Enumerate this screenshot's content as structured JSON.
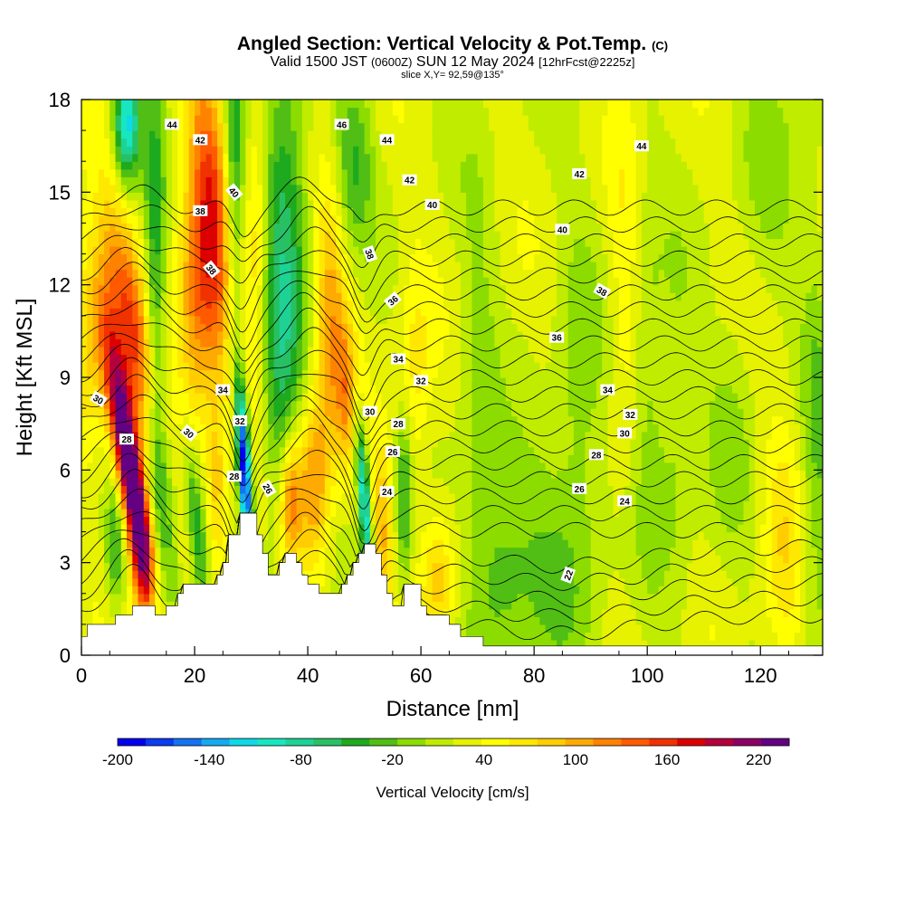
{
  "title": {
    "main": "Angled Section: Vertical Velocity & Pot.Temp.",
    "mark": "(C)",
    "valid_prefix": "Valid 1500 JST",
    "valid_z": "(0600Z)",
    "valid_date": "SUN 12 May 2024",
    "forecast": "[12hrFcst@2225z]",
    "slice": "slice X,Y= 92,59@135°"
  },
  "chart_data": {
    "type": "heatmap",
    "xlabel": "Distance [nm]",
    "ylabel": "Height [Kft MSL]",
    "xlim": [
      0,
      131
    ],
    "ylim": [
      0,
      18
    ],
    "x_ticks": [
      "0",
      "20",
      "40",
      "60",
      "80",
      "100",
      "120"
    ],
    "y_ticks": [
      "0",
      "3",
      "6",
      "9",
      "12",
      "15",
      "18"
    ],
    "colorbar": {
      "label": "Vertical Velocity [cm/s]",
      "tick_labels": [
        "-200",
        "-140",
        "-80",
        "-20",
        "40",
        "100",
        "160",
        "220"
      ],
      "tick_values": [
        -200,
        -140,
        -80,
        -20,
        40,
        100,
        160,
        220
      ],
      "range": [
        -200,
        240
      ],
      "colors": [
        "#0000ee",
        "#0a3cf0",
        "#1473f0",
        "#14aaf0",
        "#10d8e8",
        "#18e6c0",
        "#1ed296",
        "#28c064",
        "#1eaa1e",
        "#50be14",
        "#8cdc00",
        "#c0ec00",
        "#e6f200",
        "#ffff00",
        "#ffe800",
        "#ffcd00",
        "#ffaa00",
        "#ff8200",
        "#ff5a00",
        "#f03200",
        "#dc0000",
        "#b4003c",
        "#8c0064",
        "#640082"
      ]
    },
    "terrain": [
      [
        0,
        0.6
      ],
      [
        1,
        0.6
      ],
      [
        1,
        1
      ],
      [
        6,
        1
      ],
      [
        6,
        1.3
      ],
      [
        9,
        1.3
      ],
      [
        9,
        1.6
      ],
      [
        13,
        1.6
      ],
      [
        13,
        1.3
      ],
      [
        15,
        1.3
      ],
      [
        15,
        1.6
      ],
      [
        17,
        1.6
      ],
      [
        17,
        2
      ],
      [
        18,
        2
      ],
      [
        18,
        2.3
      ],
      [
        24,
        2.3
      ],
      [
        24,
        2.6
      ],
      [
        25,
        2.6
      ],
      [
        25,
        3
      ],
      [
        26,
        3
      ],
      [
        26,
        3.9
      ],
      [
        28,
        3.9
      ],
      [
        28,
        4.6
      ],
      [
        31,
        4.6
      ],
      [
        31,
        3.9
      ],
      [
        32,
        3.9
      ],
      [
        32,
        3.3
      ],
      [
        33,
        3.3
      ],
      [
        33,
        2.6
      ],
      [
        35,
        2.6
      ],
      [
        35,
        3
      ],
      [
        36,
        3
      ],
      [
        36,
        3.3
      ],
      [
        38,
        3.3
      ],
      [
        38,
        3
      ],
      [
        39,
        3
      ],
      [
        39,
        2.6
      ],
      [
        40,
        2.6
      ],
      [
        40,
        2.3
      ],
      [
        42,
        2.3
      ],
      [
        42,
        2
      ],
      [
        46,
        2
      ],
      [
        46,
        2.3
      ],
      [
        47,
        2.3
      ],
      [
        47,
        2.6
      ],
      [
        48,
        2.6
      ],
      [
        48,
        3
      ],
      [
        49,
        3
      ],
      [
        49,
        3.3
      ],
      [
        50,
        3.3
      ],
      [
        50,
        3.6
      ],
      [
        52,
        3.6
      ],
      [
        52,
        3.3
      ],
      [
        53,
        3.3
      ],
      [
        53,
        2.6
      ],
      [
        54,
        2.6
      ],
      [
        54,
        2
      ],
      [
        55,
        2
      ],
      [
        55,
        1.6
      ],
      [
        57,
        1.6
      ],
      [
        57,
        2.3
      ],
      [
        60,
        2.3
      ],
      [
        60,
        1.6
      ],
      [
        61,
        1.6
      ],
      [
        61,
        1.3
      ],
      [
        65,
        1.3
      ],
      [
        65,
        1
      ],
      [
        67,
        1
      ],
      [
        67,
        0.6
      ],
      [
        71,
        0.6
      ],
      [
        71,
        0.3
      ],
      [
        131,
        0.3
      ],
      [
        131,
        0
      ]
    ],
    "w_features": [
      {
        "x": 8.5,
        "y": 6,
        "sx": 1.6,
        "sy": 2.8,
        "amp": 260,
        "tilt": -0.8
      },
      {
        "x": 9,
        "y": 10.5,
        "sx": 2.5,
        "sy": 3.0,
        "amp": 110,
        "tilt": -0.8
      },
      {
        "x": 2,
        "y": 10.5,
        "sx": 3,
        "sy": 2.5,
        "amp": 60,
        "tilt": 0
      },
      {
        "x": 11,
        "y": 3,
        "sx": 1.5,
        "sy": 1.5,
        "amp": 80,
        "tilt": 0
      },
      {
        "x": 6,
        "y": 3.5,
        "sx": 1.2,
        "sy": 1.5,
        "amp": -60,
        "tilt": 0
      },
      {
        "x": 15,
        "y": 4.5,
        "sx": 1.5,
        "sy": 2.5,
        "amp": -60,
        "tilt": -0.4
      },
      {
        "x": 13,
        "y": 11,
        "sx": 1.3,
        "sy": 7,
        "amp": -70,
        "tilt": 0
      },
      {
        "x": 8,
        "y": 17.2,
        "sx": 1.6,
        "sy": 1.3,
        "amp": -140,
        "tilt": 0
      },
      {
        "x": 23,
        "y": 14.5,
        "sx": 2.5,
        "sy": 4,
        "amp": 120,
        "tilt": -0.3
      },
      {
        "x": 20,
        "y": 11,
        "sx": 2.5,
        "sy": 3,
        "amp": 80,
        "tilt": 0
      },
      {
        "x": 20.5,
        "y": 4,
        "sx": 1.2,
        "sy": 2,
        "amp": -90,
        "tilt": -0.5
      },
      {
        "x": 24,
        "y": 5.5,
        "sx": 1.3,
        "sy": 2,
        "amp": 50,
        "tilt": 0
      },
      {
        "x": 27,
        "y": 15.5,
        "sx": 1.3,
        "sy": 4,
        "amp": -80,
        "tilt": 0
      },
      {
        "x": 28.8,
        "y": 6,
        "sx": 0.8,
        "sy": 2.0,
        "amp": -230,
        "tilt": -0.3
      },
      {
        "x": 31,
        "y": 13.5,
        "sx": 1.5,
        "sy": 4.5,
        "amp": 50,
        "tilt": 0
      },
      {
        "x": 36,
        "y": 14,
        "sx": 3,
        "sy": 4,
        "amp": -80,
        "tilt": 0
      },
      {
        "x": 35,
        "y": 8,
        "sx": 2.5,
        "sy": 3,
        "amp": -50,
        "tilt": 0
      },
      {
        "x": 37,
        "y": 5,
        "sx": 1.3,
        "sy": 1.5,
        "amp": 100,
        "tilt": 0
      },
      {
        "x": 41,
        "y": 5.5,
        "sx": 2,
        "sy": 2,
        "amp": 90,
        "tilt": 0
      },
      {
        "x": 44,
        "y": 11,
        "sx": 2,
        "sy": 3,
        "amp": 80,
        "tilt": 0
      },
      {
        "x": 47,
        "y": 8.5,
        "sx": 1.5,
        "sy": 1.8,
        "amp": 70,
        "tilt": 0
      },
      {
        "x": 50,
        "y": 5,
        "sx": 0.8,
        "sy": 2.2,
        "amp": -140,
        "tilt": -0.4
      },
      {
        "x": 48,
        "y": 16,
        "sx": 2.5,
        "sy": 2,
        "amp": -60,
        "tilt": 0
      },
      {
        "x": 53,
        "y": 4,
        "sx": 1.3,
        "sy": 2,
        "amp": 70,
        "tilt": 0
      },
      {
        "x": 57,
        "y": 5,
        "sx": 1,
        "sy": 2,
        "amp": -70,
        "tilt": 0
      },
      {
        "x": 59,
        "y": 9,
        "sx": 2,
        "sy": 2.5,
        "amp": 40,
        "tilt": 0
      },
      {
        "x": 63,
        "y": 2.5,
        "sx": 2,
        "sy": 1.5,
        "amp": 60,
        "tilt": 0
      },
      {
        "x": 70,
        "y": 8,
        "sx": 2.5,
        "sy": 6,
        "amp": -30,
        "tilt": 0
      },
      {
        "x": 74,
        "y": 2.5,
        "sx": 3,
        "sy": 2,
        "amp": -40,
        "tilt": 0
      },
      {
        "x": 82,
        "y": 3,
        "sx": 6,
        "sy": 3,
        "amp": -35,
        "tilt": 0
      },
      {
        "x": 88,
        "y": 8,
        "sx": 3,
        "sy": 5,
        "amp": -30,
        "tilt": 0
      },
      {
        "x": 96,
        "y": 12,
        "sx": 2,
        "sy": 5,
        "amp": 25,
        "tilt": 0
      },
      {
        "x": 100,
        "y": 9,
        "sx": 2,
        "sy": 4,
        "amp": -30,
        "tilt": 0
      },
      {
        "x": 105,
        "y": 7,
        "sx": 3,
        "sy": 4,
        "amp": -30,
        "tilt": 0
      },
      {
        "x": 115,
        "y": 7,
        "sx": 3,
        "sy": 3,
        "amp": -25,
        "tilt": 0
      },
      {
        "x": 124,
        "y": 3.5,
        "sx": 2.5,
        "sy": 3,
        "amp": 40,
        "tilt": 0
      },
      {
        "x": 130,
        "y": 6,
        "sx": 2,
        "sy": 6,
        "amp": -40,
        "tilt": 0
      },
      {
        "x": 122,
        "y": 16,
        "sx": 4,
        "sy": 3,
        "amp": -25,
        "tilt": 0
      }
    ],
    "theta_contours": {
      "levels": [
        22,
        23,
        24,
        25,
        26,
        27,
        28,
        29,
        30,
        31,
        32,
        33,
        34,
        35,
        36,
        37,
        38,
        39,
        40,
        41,
        42,
        43,
        44,
        45,
        46
      ],
      "labels": [
        {
          "text": "22",
          "x": 86,
          "y": 2.6,
          "rot": -70
        },
        {
          "text": "24",
          "x": 54,
          "y": 5.3,
          "rot": 0
        },
        {
          "text": "24",
          "x": 96,
          "y": 5.0,
          "rot": 0
        },
        {
          "text": "26",
          "x": 33,
          "y": 5.4,
          "rot": 60
        },
        {
          "text": "26",
          "x": 55,
          "y": 6.6,
          "rot": 0
        },
        {
          "text": "26",
          "x": 88,
          "y": 5.4,
          "rot": 0
        },
        {
          "text": "28",
          "x": 8,
          "y": 7.0,
          "rot": 0
        },
        {
          "text": "28",
          "x": 27,
          "y": 5.8,
          "rot": 0
        },
        {
          "text": "28",
          "x": 56,
          "y": 7.5,
          "rot": 0
        },
        {
          "text": "28",
          "x": 91,
          "y": 6.5,
          "rot": 0
        },
        {
          "text": "30",
          "x": 3,
          "y": 8.3,
          "rot": 30
        },
        {
          "text": "30",
          "x": 19,
          "y": 7.2,
          "rot": 40
        },
        {
          "text": "30",
          "x": 51,
          "y": 7.9,
          "rot": 0
        },
        {
          "text": "30",
          "x": 96,
          "y": 7.2,
          "rot": 0
        },
        {
          "text": "32",
          "x": 28,
          "y": 7.6,
          "rot": 0
        },
        {
          "text": "32",
          "x": 60,
          "y": 8.9,
          "rot": 0
        },
        {
          "text": "32",
          "x": 97,
          "y": 7.8,
          "rot": 0
        },
        {
          "text": "34",
          "x": 25,
          "y": 8.6,
          "rot": 0
        },
        {
          "text": "34",
          "x": 56,
          "y": 9.6,
          "rot": 0
        },
        {
          "text": "34",
          "x": 93,
          "y": 8.6,
          "rot": 0
        },
        {
          "text": "36",
          "x": 55,
          "y": 11.5,
          "rot": -40
        },
        {
          "text": "36",
          "x": 84,
          "y": 10.3,
          "rot": 0
        },
        {
          "text": "38",
          "x": 23,
          "y": 12.5,
          "rot": 50
        },
        {
          "text": "38",
          "x": 51,
          "y": 13.0,
          "rot": 70
        },
        {
          "text": "38",
          "x": 92,
          "y": 11.8,
          "rot": 30
        },
        {
          "text": "38",
          "x": 21,
          "y": 14.4,
          "rot": 0
        },
        {
          "text": "40",
          "x": 27,
          "y": 15.0,
          "rot": 50
        },
        {
          "text": "40",
          "x": 62,
          "y": 14.6,
          "rot": 0
        },
        {
          "text": "40",
          "x": 85,
          "y": 13.8,
          "rot": 0
        },
        {
          "text": "42",
          "x": 21,
          "y": 16.7,
          "rot": 0
        },
        {
          "text": "42",
          "x": 58,
          "y": 15.4,
          "rot": 0
        },
        {
          "text": "42",
          "x": 88,
          "y": 15.6,
          "rot": 0
        },
        {
          "text": "44",
          "x": 16,
          "y": 17.2,
          "rot": 0
        },
        {
          "text": "44",
          "x": 54,
          "y": 16.7,
          "rot": 0
        },
        {
          "text": "44",
          "x": 99,
          "y": 16.5,
          "rot": 0
        },
        {
          "text": "46",
          "x": 46,
          "y": 17.2,
          "rot": 0
        }
      ]
    }
  }
}
